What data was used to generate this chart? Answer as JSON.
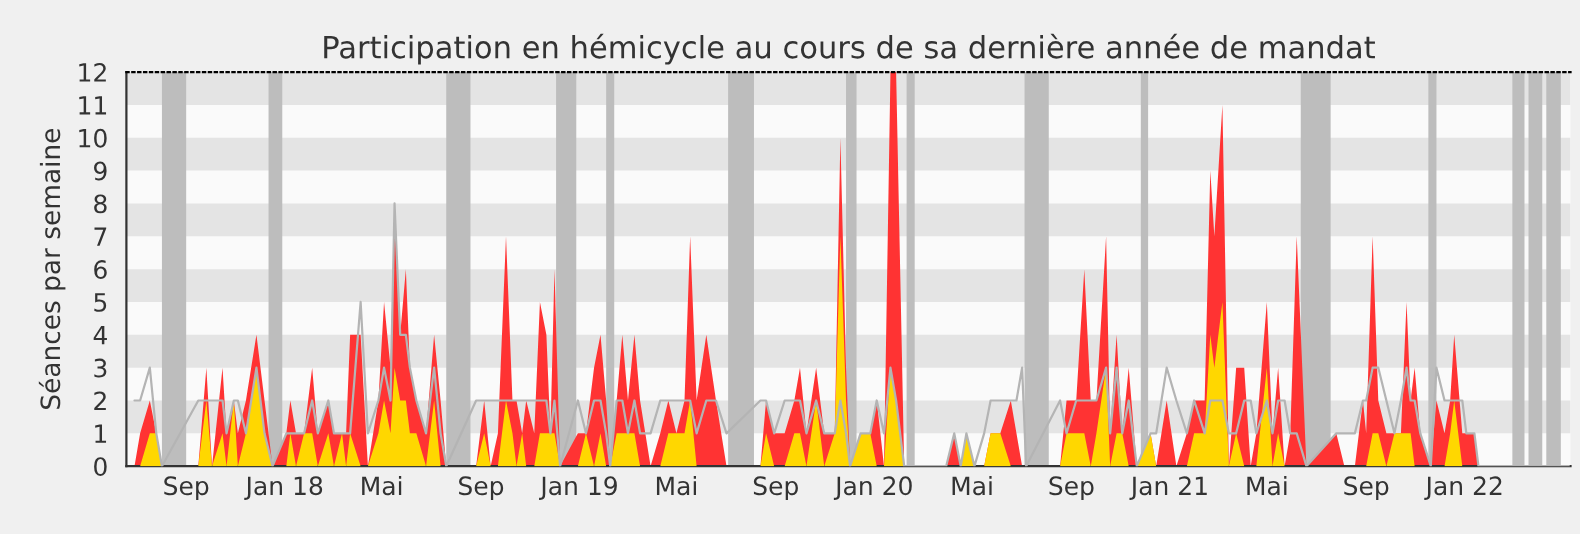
{
  "chart_data": {
    "type": "area",
    "title": "Participation en hémicycle au cours de sa dernière année de mandat",
    "ylabel": "Séances par semaine",
    "x": [
      "2017-06-29",
      "2017-07-06",
      "2017-07-18",
      "2017-07-26",
      "2017-08-02",
      "2017-09-16",
      "2017-09-26",
      "2017-10-03",
      "2017-10-16",
      "2017-10-21",
      "2017-10-30",
      "2017-11-04",
      "2017-11-14",
      "2017-11-27",
      "2017-12-07",
      "2017-12-17",
      "2018-01-03",
      "2018-01-08",
      "2018-01-15",
      "2018-01-25",
      "2018-02-04",
      "2018-02-11",
      "2018-02-24",
      "2018-03-03",
      "2018-03-13",
      "2018-03-18",
      "2018-03-23",
      "2018-04-05",
      "2018-04-14",
      "2018-04-27",
      "2018-05-04",
      "2018-05-12",
      "2018-05-17",
      "2018-05-24",
      "2018-05-31",
      "2018-06-05",
      "2018-06-13",
      "2018-06-25",
      "2018-07-05",
      "2018-07-13",
      "2018-07-20",
      "2018-08-26",
      "2018-09-05",
      "2018-09-13",
      "2018-09-22",
      "2018-10-02",
      "2018-10-10",
      "2018-10-15",
      "2018-10-22",
      "2018-10-27",
      "2018-11-06",
      "2018-11-13",
      "2018-11-21",
      "2018-11-26",
      "2018-12-01",
      "2018-12-08",
      "2018-12-30",
      "2019-01-09",
      "2019-01-19",
      "2019-01-27",
      "2019-02-03",
      "2019-02-08",
      "2019-02-16",
      "2019-02-23",
      "2019-03-02",
      "2019-03-10",
      "2019-03-17",
      "2019-03-30",
      "2019-04-11",
      "2019-04-21",
      "2019-05-01",
      "2019-05-11",
      "2019-05-18",
      "2019-05-26",
      "2019-06-07",
      "2019-06-19",
      "2019-07-02",
      "2019-08-13",
      "2019-08-20",
      "2019-08-30",
      "2019-09-12",
      "2019-09-24",
      "2019-10-01",
      "2019-10-09",
      "2019-10-21",
      "2019-10-31",
      "2019-11-13",
      "2019-11-20",
      "2019-11-27",
      "2019-12-02",
      "2019-12-15",
      "2019-12-27",
      "2020-01-04",
      "2020-01-13",
      "2020-01-21",
      "2020-01-28",
      "2020-02-07",
      "2020-03-30",
      "2020-04-09",
      "2020-04-17",
      "2020-04-24",
      "2020-05-04",
      "2020-05-16",
      "2020-05-24",
      "2020-06-05",
      "2020-06-18",
      "2020-06-25",
      "2020-07-02",
      "2020-07-07",
      "2020-08-18",
      "2020-08-26",
      "2020-09-07",
      "2020-09-17",
      "2020-09-25",
      "2020-10-02",
      "2020-10-14",
      "2020-10-19",
      "2020-10-27",
      "2020-11-03",
      "2020-11-11",
      "2020-11-21",
      "2020-12-08",
      "2020-12-15",
      "2020-12-28",
      "2021-01-09",
      "2021-01-22",
      "2021-01-31",
      "2021-02-13",
      "2021-02-20",
      "2021-02-25",
      "2021-03-07",
      "2021-03-15",
      "2021-03-24",
      "2021-04-03",
      "2021-04-11",
      "2021-04-18",
      "2021-05-01",
      "2021-05-08",
      "2021-05-15",
      "2021-05-23",
      "2021-05-30",
      "2021-06-07",
      "2021-06-19",
      "2021-07-26",
      "2021-08-05",
      "2021-08-18",
      "2021-08-28",
      "2021-09-01",
      "2021-09-09",
      "2021-09-16",
      "2021-09-26",
      "2021-10-06",
      "2021-10-14",
      "2021-10-21",
      "2021-10-26",
      "2021-10-31",
      "2021-11-07",
      "2021-11-20",
      "2021-11-27",
      "2021-12-07",
      "2021-12-14",
      "2021-12-19",
      "2021-12-29",
      "2022-01-03",
      "2022-01-13",
      "2022-01-18",
      "2022-05-10"
    ],
    "series": [
      {
        "color": "#ff3333",
        "values": [
          0,
          1,
          2,
          1,
          0,
          0,
          3,
          0,
          3,
          1,
          2,
          1,
          2,
          4,
          2,
          0,
          1,
          2,
          1,
          1,
          3,
          1,
          2,
          1,
          1,
          1,
          4,
          4,
          0,
          2,
          5,
          3,
          8,
          4,
          6,
          3,
          2,
          1,
          4,
          2,
          0,
          0,
          2,
          0,
          1,
          7,
          2,
          2,
          1,
          2,
          1,
          5,
          4,
          1,
          6,
          0,
          1,
          1,
          3,
          4,
          2,
          0,
          2,
          4,
          2,
          4,
          2,
          0,
          1,
          2,
          1,
          2,
          7,
          2,
          4,
          2,
          0,
          0,
          2,
          1,
          1,
          2,
          3,
          1,
          3,
          1,
          1,
          10,
          3,
          0,
          1,
          1,
          2,
          0,
          12,
          12,
          0,
          0,
          1,
          0,
          1,
          0,
          0,
          1,
          1,
          2,
          1,
          0,
          0,
          0,
          2,
          2,
          6,
          2,
          2,
          7,
          1,
          4,
          1,
          3,
          0,
          1,
          0,
          2,
          0,
          1,
          2,
          2,
          9,
          7,
          11,
          0,
          3,
          3,
          0,
          1,
          5,
          1,
          3,
          0,
          1,
          7,
          0,
          1,
          0,
          0,
          2,
          1,
          7,
          2,
          1,
          1,
          1,
          5,
          2,
          3,
          1,
          0,
          2,
          1,
          2,
          4,
          1,
          1,
          1,
          0,
          0
        ]
      },
      {
        "color": "#ffd700",
        "values": [
          0,
          0,
          1,
          1,
          0,
          0,
          2,
          0,
          1,
          0,
          2,
          0,
          1,
          3,
          1,
          0,
          0,
          1,
          0,
          1,
          1,
          0,
          1,
          0,
          1,
          0,
          1,
          0,
          0,
          1,
          2,
          1,
          3,
          2,
          2,
          1,
          1,
          0,
          2,
          0,
          0,
          0,
          1,
          0,
          0,
          2,
          1,
          0,
          1,
          0,
          0,
          1,
          1,
          1,
          1,
          0,
          0,
          1,
          0,
          1,
          0,
          0,
          1,
          1,
          1,
          1,
          0,
          0,
          0,
          1,
          1,
          1,
          2,
          0,
          0,
          0,
          0,
          0,
          1,
          0,
          0,
          1,
          1,
          0,
          2,
          0,
          1,
          7,
          2,
          0,
          1,
          1,
          0,
          0,
          3,
          2,
          0,
          0,
          0,
          0,
          1,
          0,
          0,
          1,
          1,
          0,
          0,
          0,
          0,
          0,
          1,
          1,
          1,
          0,
          1,
          3,
          0,
          1,
          1,
          0,
          0,
          1,
          0,
          0,
          0,
          0,
          1,
          1,
          4,
          3,
          5,
          0,
          1,
          0,
          0,
          0,
          3,
          0,
          1,
          0,
          0,
          0,
          0,
          0,
          0,
          0,
          0,
          0,
          1,
          1,
          0,
          1,
          1,
          1,
          1,
          0,
          0,
          0,
          0,
          0,
          1,
          2,
          0,
          0,
          0,
          0,
          0
        ]
      },
      {
        "type": "line",
        "color": "#b4b4b4",
        "values": [
          2,
          2,
          3,
          1,
          0,
          2,
          2,
          2,
          2,
          1,
          2,
          2,
          1,
          3,
          1,
          0,
          1,
          1,
          1,
          1,
          2,
          1,
          2,
          1,
          1,
          1,
          1,
          5,
          1,
          2,
          3,
          2,
          8,
          4,
          4,
          3,
          2,
          1,
          3,
          1,
          0,
          2,
          2,
          2,
          2,
          2,
          2,
          2,
          2,
          2,
          2,
          2,
          2,
          1,
          2,
          0,
          2,
          1,
          2,
          2,
          1,
          0,
          2,
          2,
          1,
          2,
          1,
          1,
          2,
          2,
          2,
          2,
          2,
          1,
          2,
          2,
          1,
          2,
          2,
          1,
          2,
          2,
          2,
          1,
          2,
          1,
          1,
          2,
          1,
          0,
          1,
          1,
          2,
          1,
          3,
          2,
          0,
          0,
          1,
          0,
          1,
          0,
          1,
          2,
          2,
          2,
          2,
          3,
          0,
          2,
          1,
          2,
          2,
          2,
          2,
          3,
          1,
          3,
          1,
          2,
          0,
          1,
          1,
          3,
          2,
          1,
          2,
          1,
          2,
          2,
          2,
          1,
          1,
          2,
          2,
          1,
          2,
          1,
          2,
          2,
          1,
          1,
          0,
          1,
          1,
          1,
          2,
          2,
          3,
          3,
          2,
          1,
          2,
          3,
          2,
          2,
          1,
          0,
          3,
          2,
          2,
          2,
          2,
          1,
          1,
          0,
          0
        ]
      }
    ],
    "xlim": [
      "2017-06-19",
      "2022-05-12"
    ],
    "xticks": [
      {
        "value": "2017-09-01",
        "label": "Sep"
      },
      {
        "value": "2018-01-01",
        "label": "Jan 18"
      },
      {
        "value": "2018-05-01",
        "label": "Mai"
      },
      {
        "value": "2018-09-01",
        "label": "Sep"
      },
      {
        "value": "2019-01-01",
        "label": "Jan 19"
      },
      {
        "value": "2019-05-01",
        "label": "Mai"
      },
      {
        "value": "2019-09-01",
        "label": "Sep"
      },
      {
        "value": "2020-01-01",
        "label": "Jan 20"
      },
      {
        "value": "2020-05-01",
        "label": "Mai"
      },
      {
        "value": "2020-09-01",
        "label": "Sep"
      },
      {
        "value": "2021-01-01",
        "label": "Jan 21"
      },
      {
        "value": "2021-05-01",
        "label": "Mai"
      },
      {
        "value": "2021-09-01",
        "label": "Sep"
      },
      {
        "value": "2022-01-01",
        "label": "Jan 22"
      }
    ],
    "ylim": [
      0,
      12
    ],
    "yticks": [
      0,
      1,
      2,
      3,
      4,
      5,
      6,
      7,
      8,
      9,
      10,
      11,
      12
    ],
    "bands": [
      {
        "axis": "y",
        "from": 1,
        "to": 2,
        "color": "#e4e4e4"
      },
      {
        "axis": "y",
        "from": 3,
        "to": 4,
        "color": "#e4e4e4"
      },
      {
        "axis": "y",
        "from": 5,
        "to": 6,
        "color": "#e4e4e4"
      },
      {
        "axis": "y",
        "from": 7,
        "to": 8,
        "color": "#e4e4e4"
      },
      {
        "axis": "y",
        "from": 9,
        "to": 10,
        "color": "#e4e4e4"
      },
      {
        "axis": "y",
        "from": 11,
        "to": 12,
        "color": "#e4e4e4"
      },
      {
        "axis": "x",
        "from": "2017-08-02",
        "to": "2017-09-01",
        "color": "#bdbdbd"
      },
      {
        "axis": "x",
        "from": "2017-12-12",
        "to": "2017-12-29",
        "color": "#bdbdbd"
      },
      {
        "axis": "x",
        "from": "2018-07-20",
        "to": "2018-08-19",
        "color": "#bdbdbd"
      },
      {
        "axis": "x",
        "from": "2018-12-03",
        "to": "2018-12-28",
        "color": "#bdbdbd"
      },
      {
        "axis": "x",
        "from": "2019-02-03",
        "to": "2019-02-13",
        "color": "#bdbdbd"
      },
      {
        "axis": "x",
        "from": "2019-07-04",
        "to": "2019-08-05",
        "color": "#bdbdbd"
      },
      {
        "axis": "x",
        "from": "2019-11-27",
        "to": "2019-12-10",
        "color": "#bdbdbd"
      },
      {
        "axis": "x",
        "from": "2020-02-10",
        "to": "2020-02-20",
        "color": "#bdbdbd"
      },
      {
        "axis": "x",
        "from": "2020-07-05",
        "to": "2020-08-04",
        "color": "#bdbdbd"
      },
      {
        "axis": "x",
        "from": "2020-11-26",
        "to": "2020-12-05",
        "color": "#bdbdbd"
      },
      {
        "axis": "x",
        "from": "2021-06-12",
        "to": "2021-07-19",
        "color": "#bdbdbd"
      },
      {
        "axis": "x",
        "from": "2021-11-17",
        "to": "2021-11-27",
        "color": "#bdbdbd"
      },
      {
        "axis": "x",
        "from": "2022-03-01",
        "to": "2022-03-16",
        "color": "#bdbdbd"
      },
      {
        "axis": "x",
        "from": "2022-03-21",
        "to": "2022-04-07",
        "color": "#bdbdbd"
      },
      {
        "axis": "x",
        "from": "2022-04-12",
        "to": "2022-04-30",
        "color": "#bdbdbd"
      }
    ]
  }
}
